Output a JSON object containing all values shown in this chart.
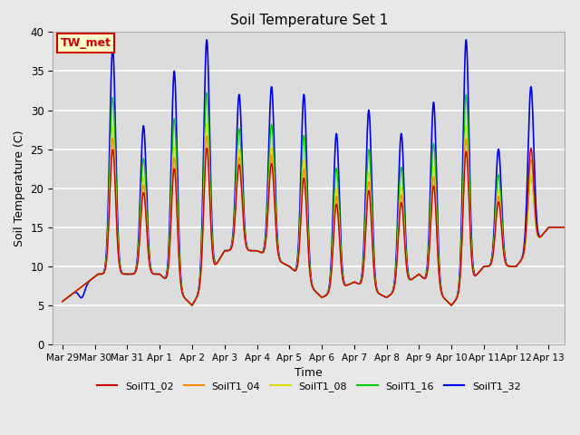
{
  "title": "Soil Temperature Set 1",
  "xlabel": "Time",
  "ylabel": "Soil Temperature (C)",
  "ylim": [
    0,
    40
  ],
  "background_color": "#e8e8e8",
  "plot_bg_color": "#dcdcdc",
  "grid_color": "white",
  "annotation_text": "TW_met",
  "annotation_bg": "#ffffcc",
  "annotation_border": "#cc0000",
  "series": [
    "SoilT1_02",
    "SoilT1_04",
    "SoilT1_08",
    "SoilT1_16",
    "SoilT1_32"
  ],
  "colors": [
    "#cc0000",
    "#ff8800",
    "#dddd00",
    "#00cc00",
    "#0000ee"
  ],
  "linewidths": [
    1.0,
    1.0,
    1.0,
    1.0,
    1.2
  ],
  "x_tick_labels": [
    "Mar 29",
    "Mar 30",
    "Mar 31",
    "Apr 1",
    "Apr 2",
    "Apr 3",
    "Apr 4",
    "Apr 5",
    "Apr 6",
    "Apr 7",
    "Apr 8",
    "Apr 9",
    "Apr 10",
    "Apr 11",
    "Apr 12",
    "Apr 13"
  ],
  "x_tick_positions": [
    0,
    1,
    2,
    3,
    4,
    5,
    6,
    7,
    8,
    9,
    10,
    11,
    12,
    13,
    14,
    15
  ],
  "peak_times": [
    0.6,
    1.55,
    2.5,
    3.45,
    4.45,
    5.45,
    6.45,
    7.45,
    8.45,
    9.45,
    10.45,
    11.45,
    12.45,
    13.45,
    14.45
  ],
  "peak_heights": [
    6,
    38,
    28,
    35,
    39,
    32,
    33,
    32,
    27,
    30,
    27,
    31,
    39,
    25,
    33
  ],
  "trough_times": [
    0.0,
    1.1,
    2.05,
    3.0,
    4.0,
    5.0,
    6.0,
    7.0,
    8.0,
    9.0,
    10.0,
    11.0,
    12.0,
    13.0,
    14.0,
    15.0,
    15.5
  ],
  "trough_heights": [
    5.5,
    9,
    9,
    9,
    5,
    12,
    12,
    10,
    6,
    8,
    6,
    9,
    5,
    10,
    10,
    15,
    15
  ]
}
